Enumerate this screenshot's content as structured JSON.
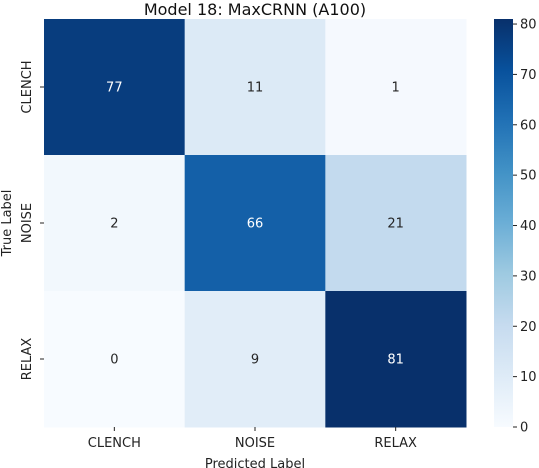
{
  "chart_data": {
    "type": "heatmap",
    "title": "Model 18: MaxCRNN (A100)",
    "xlabel": "Predicted Label",
    "ylabel": "True Label",
    "x_categories": [
      "CLENCH",
      "NOISE",
      "RELAX"
    ],
    "y_categories": [
      "CLENCH",
      "NOISE",
      "RELAX"
    ],
    "values": [
      [
        77,
        11,
        1
      ],
      [
        2,
        66,
        21
      ],
      [
        0,
        9,
        81
      ]
    ],
    "colorbar": {
      "min": 0,
      "max": 81,
      "ticks": [
        0,
        10,
        20,
        30,
        40,
        50,
        60,
        70,
        80
      ],
      "colormap": "Blues"
    }
  }
}
